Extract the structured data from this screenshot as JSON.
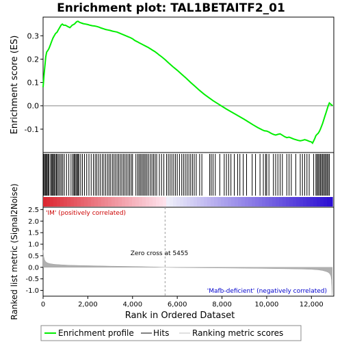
{
  "chart_data": {
    "type": "line",
    "title": "Enrichment plot: TAL1BETAITF2_01",
    "top_panel": {
      "ylabel": "Enrichment score (ES)",
      "ylim": [
        -0.2,
        0.38
      ],
      "yticks": [
        -0.1,
        0.0,
        0.1,
        0.2,
        0.3
      ],
      "ytick_labels": [
        "-0.1",
        "0.0",
        "0.1",
        "0.2",
        "0.3"
      ],
      "series": [
        {
          "name": "Enrichment profile",
          "color": "#00ee00",
          "x": [
            0,
            40,
            80,
            120,
            160,
            200,
            260,
            320,
            380,
            440,
            500,
            560,
            620,
            680,
            740,
            800,
            860,
            920,
            1000,
            1100,
            1200,
            1300,
            1400,
            1500,
            1560,
            1620,
            1700,
            1800,
            1900,
            2000,
            2100,
            2200,
            2300,
            2400,
            2500,
            2600,
            2700,
            2800,
            2900,
            3000,
            3100,
            3200,
            3300,
            3400,
            3500,
            3600,
            3700,
            3800,
            3900,
            4000,
            4100,
            4200,
            4300,
            4400,
            4500,
            4600,
            4700,
            4800,
            4900,
            5000,
            5100,
            5200,
            5300,
            5455,
            5600,
            5800,
            6000,
            6200,
            6400,
            6600,
            6800,
            7000,
            7200,
            7400,
            7600,
            7800,
            8000,
            8200,
            8400,
            8600,
            8800,
            9000,
            9200,
            9400,
            9600,
            9800,
            9900,
            10000,
            10100,
            10200,
            10300,
            10400,
            10500,
            10600,
            10700,
            10800,
            10900,
            11000,
            11100,
            11200,
            11300,
            11400,
            11500,
            11600,
            11700,
            11800,
            11900,
            12000,
            12050,
            12100,
            12150,
            12200,
            12250,
            12300,
            12350,
            12400,
            12450,
            12500,
            12550,
            12600,
            12650,
            12700,
            12750,
            12800,
            12850,
            12900,
            12950
          ],
          "y": [
            0.08,
            0.13,
            0.17,
            0.21,
            0.23,
            0.235,
            0.245,
            0.26,
            0.275,
            0.29,
            0.3,
            0.31,
            0.315,
            0.325,
            0.335,
            0.345,
            0.35,
            0.345,
            0.345,
            0.34,
            0.335,
            0.345,
            0.35,
            0.36,
            0.362,
            0.358,
            0.355,
            0.352,
            0.35,
            0.348,
            0.345,
            0.343,
            0.342,
            0.34,
            0.337,
            0.333,
            0.33,
            0.327,
            0.325,
            0.323,
            0.32,
            0.318,
            0.316,
            0.312,
            0.308,
            0.304,
            0.3,
            0.296,
            0.292,
            0.287,
            0.28,
            0.275,
            0.27,
            0.265,
            0.26,
            0.255,
            0.25,
            0.244,
            0.238,
            0.232,
            0.225,
            0.217,
            0.21,
            0.198,
            0.185,
            0.168,
            0.152,
            0.135,
            0.118,
            0.1,
            0.083,
            0.066,
            0.05,
            0.036,
            0.022,
            0.01,
            -0.002,
            -0.014,
            -0.025,
            -0.036,
            -0.047,
            -0.058,
            -0.07,
            -0.082,
            -0.093,
            -0.103,
            -0.107,
            -0.108,
            -0.112,
            -0.118,
            -0.122,
            -0.125,
            -0.122,
            -0.12,
            -0.126,
            -0.132,
            -0.136,
            -0.134,
            -0.138,
            -0.142,
            -0.145,
            -0.148,
            -0.15,
            -0.148,
            -0.145,
            -0.148,
            -0.152,
            -0.155,
            -0.16,
            -0.15,
            -0.14,
            -0.128,
            -0.122,
            -0.118,
            -0.11,
            -0.1,
            -0.088,
            -0.075,
            -0.06,
            -0.045,
            -0.03,
            -0.015,
            0.0,
            0.012,
            0.008,
            0.004,
            0.0
          ]
        }
      ]
    },
    "hits": [
      20,
      60,
      100,
      140,
      180,
      220,
      260,
      330,
      380,
      420,
      460,
      500,
      550,
      600,
      640,
      700,
      760,
      820,
      880,
      950,
      1050,
      1150,
      1250,
      1330,
      1380,
      1420,
      1470,
      1520,
      1560,
      1600,
      1680,
      1760,
      1850,
      1950,
      2050,
      2150,
      2250,
      2330,
      2400,
      2480,
      2560,
      2650,
      2720,
      2800,
      2880,
      2950,
      3020,
      3100,
      3170,
      3240,
      3310,
      3380,
      3450,
      3520,
      3590,
      3660,
      3730,
      3800,
      3870,
      3940,
      4000,
      4150,
      4230,
      4290,
      4350,
      4410,
      4470,
      4530,
      4590,
      4650,
      4720,
      4800,
      4870,
      4940,
      5010,
      5080,
      5200,
      5300,
      5400,
      5520,
      5600,
      5680,
      5760,
      5840,
      5920,
      6000,
      6100,
      6200,
      6280,
      6360,
      6440,
      6520,
      6600,
      6680,
      6760,
      6850,
      7000,
      7100,
      7450,
      7520,
      7600,
      7700,
      7900,
      8100,
      8200,
      8300,
      8400,
      8550,
      8700,
      8800,
      8950,
      9100,
      9350,
      9500,
      9700,
      9850,
      9950,
      10000,
      10100,
      10300,
      10400,
      10500,
      10600,
      10700,
      10900,
      11000,
      11100,
      11300,
      11500,
      11600,
      11700,
      11800,
      11900,
      12100,
      12200,
      12250,
      12300,
      12350,
      12400,
      12450,
      12500,
      12550,
      12600,
      12650,
      12700,
      12750,
      12800
    ],
    "x_axis": {
      "label": "Rank in Ordered Dataset",
      "xlim": [
        0,
        13000
      ],
      "ticks": [
        0,
        2000,
        4000,
        6000,
        8000,
        10000,
        12000
      ],
      "tick_labels": [
        "0",
        "2,000",
        "4,000",
        "6,000",
        "8,000",
        "10,000",
        "12,000"
      ]
    },
    "bottom_panel": {
      "ylabel": "Ranked list metric (Signal2Noise)",
      "ylim": [
        -1.25,
        2.6
      ],
      "yticks": [
        -1.0,
        -0.5,
        0.0,
        0.5,
        1.0,
        1.5,
        2.0,
        2.5
      ],
      "ytick_labels": [
        "-1.0",
        "-0.5",
        "0.0",
        "0.5",
        "1.0",
        "1.5",
        "2.0",
        "2.5"
      ],
      "metric_x": [
        0,
        30,
        60,
        100,
        150,
        200,
        300,
        500,
        800,
        1200,
        2000,
        3000,
        4000,
        5000,
        5455,
        6000,
        7000,
        8000,
        9000,
        10000,
        11000,
        11500,
        12000,
        12300,
        12500,
        12650,
        12750,
        12820,
        12870,
        12900,
        12930
      ],
      "metric_y": [
        0.75,
        0.45,
        0.33,
        0.26,
        0.22,
        0.19,
        0.16,
        0.13,
        0.11,
        0.09,
        0.07,
        0.05,
        0.035,
        0.015,
        0.0,
        -0.01,
        -0.02,
        -0.03,
        -0.04,
        -0.05,
        -0.065,
        -0.075,
        -0.09,
        -0.11,
        -0.14,
        -0.18,
        -0.22,
        -0.28,
        -0.38,
        -0.55,
        -1.2
      ],
      "zero_cross_x": 5455,
      "annotations": {
        "zero_cross": "Zero cross at 5455",
        "positive": "'IM' (positively correlated)",
        "negative": "'Mafb-deficient' (negatively correlated)"
      },
      "colors": {
        "positive": "#cc0000",
        "negative": "#0000cc",
        "metric_fill": "#b0b0b0"
      }
    },
    "legend": {
      "placement": "bottom",
      "items": [
        {
          "label": "Enrichment profile",
          "color": "#00ee00"
        },
        {
          "label": "Hits",
          "color": "#000000"
        },
        {
          "label": "Ranking metric scores",
          "color": "#c0c0c0"
        }
      ]
    }
  }
}
